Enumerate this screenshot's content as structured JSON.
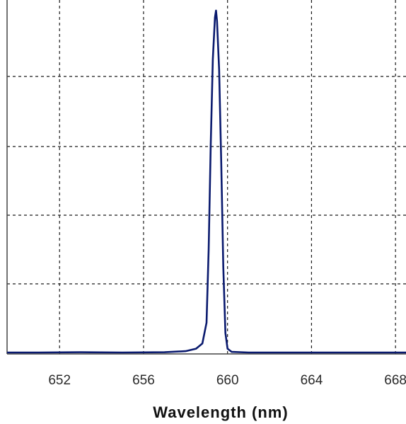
{
  "chart_data": {
    "type": "line",
    "title": "",
    "xlabel": "Wavelength (nm)",
    "ylabel": "",
    "xlim": [
      649.5,
      668.5
    ],
    "ylim": [
      0,
      1.0
    ],
    "xticks": [
      652,
      656,
      660,
      664,
      668
    ],
    "xtick_labels": [
      "652",
      "656",
      "660",
      "664",
      "668"
    ],
    "yticks": [
      0,
      0.2,
      0.4,
      0.6,
      0.8,
      1.0
    ],
    "grid": true,
    "grid_style": "dashed",
    "legend": "none",
    "colors": {
      "line": "#0a1a6e",
      "grid": "#1a1a1a",
      "axes": "#444444",
      "background": "#ffffff"
    },
    "series": [
      {
        "x": [
          649.5,
          651.0,
          653.0,
          655.0,
          657.0,
          658.0,
          658.5,
          658.8,
          659.0,
          659.1,
          659.2,
          659.3,
          659.4,
          659.45,
          659.5,
          659.6,
          659.7,
          659.8,
          659.9,
          660.0,
          660.2,
          661.0,
          663.0,
          665.0,
          667.0,
          668.5
        ],
        "y": [
          0.004,
          0.004,
          0.005,
          0.004,
          0.005,
          0.008,
          0.015,
          0.03,
          0.09,
          0.3,
          0.6,
          0.85,
          0.97,
          0.99,
          0.96,
          0.82,
          0.55,
          0.25,
          0.06,
          0.015,
          0.006,
          0.004,
          0.004,
          0.004,
          0.004,
          0.004
        ]
      }
    ]
  }
}
